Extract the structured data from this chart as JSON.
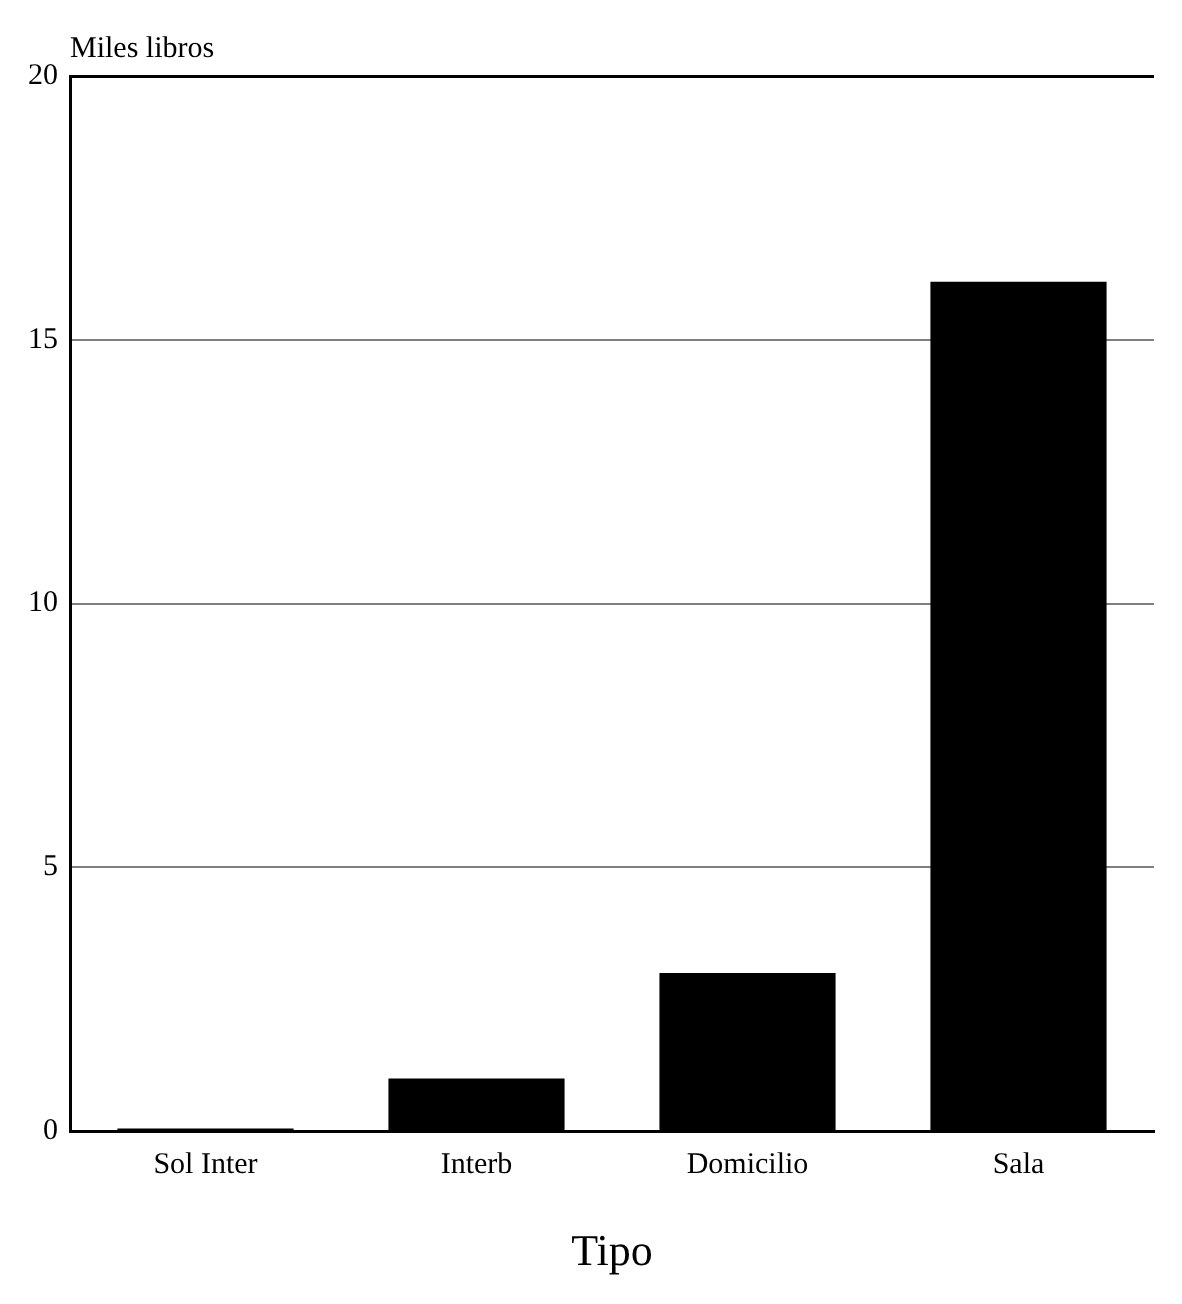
{
  "chart_data": {
    "type": "bar",
    "ylabel": "Miles libros",
    "xlabel": "Tipo",
    "categories": [
      "Sol Inter",
      "Interb",
      "Domicilio",
      "Sala"
    ],
    "values": [
      0.05,
      1,
      3,
      16.1
    ],
    "color": "#000000",
    "ylim": [
      0,
      20
    ],
    "yticks": [
      0,
      5,
      10,
      15,
      20
    ],
    "grid": "y",
    "legend": false
  }
}
